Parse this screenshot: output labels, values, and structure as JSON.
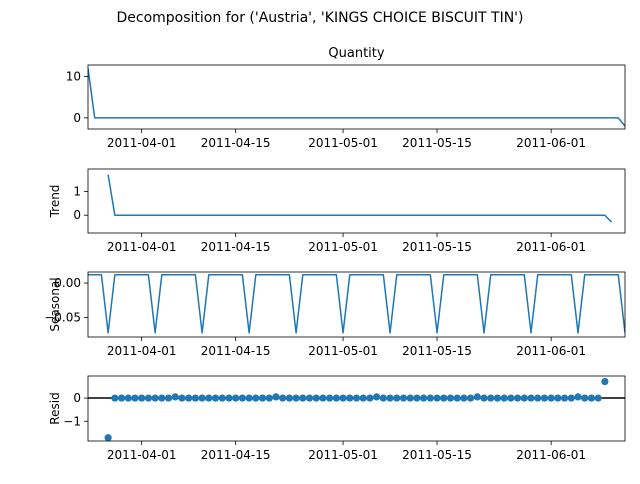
{
  "figure": {
    "suptitle": "Decomposition for ('Austria', 'KINGS CHOICE BISCUIT TIN')"
  },
  "colors": {
    "line": "#1f77b4",
    "axis": "#000000",
    "zero_line": "#000000"
  },
  "chart_data": [
    {
      "type": "line",
      "title": "Quantity",
      "ylabel": "",
      "x_start": "2011-03-24",
      "x_end": "2011-06-12",
      "xlim": [
        "2011-03-24",
        "2011-06-12"
      ],
      "ylim": [
        -2.7,
        12.8
      ],
      "yticks": [
        0,
        10
      ],
      "yticklabels": [
        "0",
        "10"
      ],
      "xticklabels": [
        "2011-04-01",
        "2011-04-15",
        "2011-05-01",
        "2011-05-15",
        "2011-06-01"
      ],
      "values_note": "daily values",
      "values": [
        12,
        0,
        0,
        0,
        0,
        0,
        0,
        0,
        0,
        0,
        0,
        0,
        0,
        0,
        0,
        0,
        0,
        0,
        0,
        0,
        0,
        0,
        0,
        0,
        0,
        0,
        0,
        0,
        0,
        0,
        0,
        0,
        0,
        0,
        0,
        0,
        0,
        0,
        0,
        0,
        0,
        0,
        0,
        0,
        0,
        0,
        0,
        0,
        0,
        0,
        0,
        0,
        0,
        0,
        0,
        0,
        0,
        0,
        0,
        0,
        0,
        0,
        0,
        0,
        0,
        0,
        0,
        0,
        0,
        0,
        0,
        0,
        0,
        0,
        0,
        0,
        0,
        0,
        0,
        0,
        -2
      ]
    },
    {
      "type": "line",
      "title": "",
      "ylabel": "Trend",
      "x_start": "2011-03-27",
      "xlim": [
        "2011-03-24",
        "2011-06-12"
      ],
      "ylim": [
        -0.75,
        1.95
      ],
      "yticks": [
        0,
        1
      ],
      "yticklabels": [
        "0",
        "1"
      ],
      "xticklabels": [
        "2011-04-01",
        "2011-04-15",
        "2011-05-01",
        "2011-05-15",
        "2011-06-01"
      ],
      "values": [
        1.71,
        0.0,
        0.0,
        0.0,
        0.0,
        0.0,
        0.0,
        0.0,
        0.0,
        0.0,
        0.0,
        0.0,
        0.0,
        0.0,
        0.0,
        0.0,
        0.0,
        0.0,
        0.0,
        0.0,
        0.0,
        0.0,
        0.0,
        0.0,
        0.0,
        0.0,
        0.0,
        0.0,
        0.0,
        0.0,
        0.0,
        0.0,
        0.0,
        0.0,
        0.0,
        0.0,
        0.0,
        0.0,
        0.0,
        0.0,
        0.0,
        0.0,
        0.0,
        0.0,
        0.0,
        0.0,
        0.0,
        0.0,
        0.0,
        0.0,
        0.0,
        0.0,
        0.0,
        0.0,
        0.0,
        0.0,
        0.0,
        0.0,
        0.0,
        0.0,
        0.0,
        0.0,
        0.0,
        0.0,
        0.0,
        0.0,
        0.0,
        0.0,
        0.0,
        0.0,
        0.0,
        0.0,
        0.0,
        0.0,
        0.0,
        -0.29
      ]
    },
    {
      "type": "line",
      "title": "",
      "ylabel": "Seasonal",
      "x_start": "2011-03-24",
      "xlim": [
        "2011-03-24",
        "2011-06-12"
      ],
      "ylim": [
        -0.078,
        0.016
      ],
      "yticks": [
        0.0,
        -0.05
      ],
      "yticklabels": [
        "0.00",
        "−0.05"
      ],
      "xticklabels": [
        "2011-04-01",
        "2011-04-15",
        "2011-05-01",
        "2011-05-15",
        "2011-06-01"
      ],
      "period": 7,
      "pattern": [
        0.012,
        0.012,
        0.012,
        -0.072,
        0.012,
        0.012,
        0.012
      ],
      "values": [
        0.012,
        0.012,
        0.012,
        -0.072,
        0.012,
        0.012,
        0.012,
        0.012,
        0.012,
        0.012,
        -0.072,
        0.012,
        0.012,
        0.012,
        0.012,
        0.012,
        0.012,
        -0.072,
        0.012,
        0.012,
        0.012,
        0.012,
        0.012,
        0.012,
        -0.072,
        0.012,
        0.012,
        0.012,
        0.012,
        0.012,
        0.012,
        -0.072,
        0.012,
        0.012,
        0.012,
        0.012,
        0.012,
        0.012,
        -0.072,
        0.012,
        0.012,
        0.012,
        0.012,
        0.012,
        0.012,
        -0.072,
        0.012,
        0.012,
        0.012,
        0.012,
        0.012,
        0.012,
        -0.072,
        0.012,
        0.012,
        0.012,
        0.012,
        0.012,
        0.012,
        -0.072,
        0.012,
        0.012,
        0.012,
        0.012,
        0.012,
        0.012,
        -0.072,
        0.012,
        0.012,
        0.012,
        0.012,
        0.012,
        0.012,
        -0.072,
        0.012,
        0.012,
        0.012,
        0.012,
        0.012,
        0.012,
        -0.072
      ]
    },
    {
      "type": "scatter",
      "title": "",
      "ylabel": "Resid",
      "x_start": "2011-03-27",
      "xlim": [
        "2011-03-24",
        "2011-06-12"
      ],
      "ylim": [
        -1.85,
        0.95
      ],
      "yticks": [
        0,
        -1
      ],
      "yticklabels": [
        "0",
        "−1"
      ],
      "xticklabels": [
        "2011-04-01",
        "2011-04-15",
        "2011-05-01",
        "2011-05-15",
        "2011-06-01"
      ],
      "zero_line": true,
      "values": [
        -1.71,
        0.0,
        0.0,
        0.0,
        0.0,
        0.0,
        0.0,
        0.0,
        0.0,
        0.0,
        0.05,
        0.0,
        0.0,
        0.0,
        0.0,
        0.0,
        0.0,
        0.0,
        0.0,
        0.0,
        0.0,
        0.0,
        0.0,
        0.0,
        0.0,
        0.05,
        0.0,
        0.0,
        0.0,
        0.0,
        0.0,
        0.0,
        0.0,
        0.0,
        0.0,
        0.0,
        0.0,
        0.0,
        0.0,
        0.0,
        0.05,
        0.0,
        0.0,
        0.0,
        0.0,
        0.0,
        0.0,
        0.0,
        0.0,
        0.0,
        0.0,
        0.0,
        0.0,
        0.0,
        0.0,
        0.05,
        0.0,
        0.0,
        0.0,
        0.0,
        0.0,
        0.0,
        0.0,
        0.0,
        0.0,
        0.0,
        0.0,
        0.0,
        0.0,
        0.0,
        0.05,
        0.0,
        0.0,
        0.0,
        0.71
      ]
    }
  ]
}
